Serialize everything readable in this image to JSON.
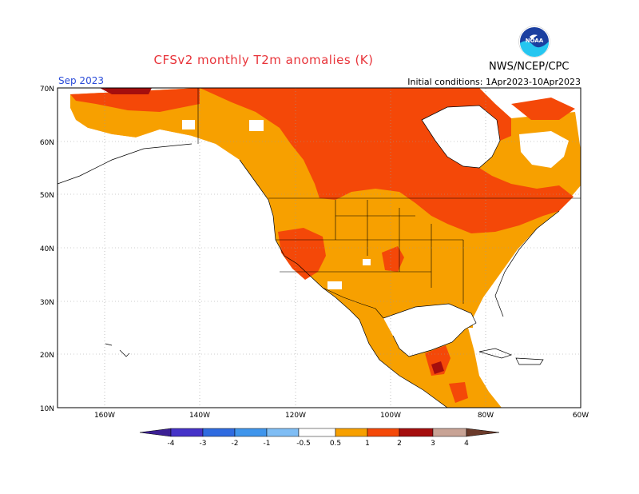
{
  "header": {
    "title": "CFSv2 monthly T2m anomalies (K)",
    "agency": "NWS/NCEP/CPC",
    "month": "Sep 2023",
    "initial_conditions": "Initial conditions: 1Apr2023-10Apr2023"
  },
  "logo": {
    "text": "NOAA"
  },
  "map": {
    "lat_labels": [
      "70N",
      "60N",
      "50N",
      "40N",
      "30N",
      "20N",
      "10N"
    ],
    "lon_labels": [
      "160W",
      "140W",
      "120W",
      "100W",
      "80W",
      "60W"
    ]
  },
  "legend": {
    "labels": [
      "-4",
      "-3",
      "-2",
      "-1",
      "-0.5",
      "0.5",
      "1",
      "2",
      "3",
      "4"
    ],
    "colors": {
      "lt_-4": "#3b1f94",
      "-4_-3": "#4532c8",
      "-3_-2": "#2f6be0",
      "-2_-1": "#3f95ec",
      "-1_-0.5": "#7fbdf4",
      "-0.5_0.5": "#ffffff",
      "0.5_1": "#f7a000",
      "1_2": "#f44808",
      "2_3": "#a50e0e",
      "3_4": "#c8a395",
      "gt_4": "#6b3a2a"
    }
  }
}
